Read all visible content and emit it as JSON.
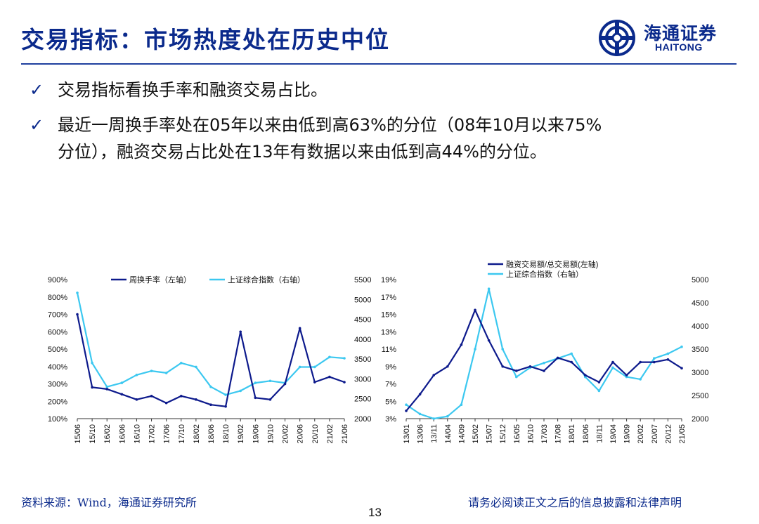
{
  "title": "交易指标：市场热度处在历史中位",
  "logo": {
    "cn": "海通证券",
    "en": "HAITONG"
  },
  "bullets": [
    {
      "check": "✓",
      "text": "交易指标看换手率和融资交易占比。"
    },
    {
      "check": "✓",
      "text": "最近一周换手率处在05年以来由低到高63%的分位（08年10月以来75%"
    },
    {
      "check": "",
      "text": "分位），融资交易占比处在13年有数据以来由低到高44%的分位。"
    }
  ],
  "footer": {
    "source": "资料来源：Wind，海通证券研究所",
    "disclaimer": "请务必阅读正文之后的信息披露和法律声明"
  },
  "page_number": "13",
  "colors": {
    "dark_series": "#0d1a8c",
    "light_series": "#3cc8f0",
    "title": "#0b2a8c"
  },
  "chart_data": [
    {
      "type": "line",
      "x": [
        "15/06",
        "15/10",
        "16/02",
        "16/06",
        "16/10",
        "17/02",
        "17/06",
        "17/10",
        "18/02",
        "18/06",
        "18/10",
        "19/02",
        "19/06",
        "19/10",
        "20/02",
        "20/06",
        "20/10",
        "21/02",
        "21/06"
      ],
      "left_axis": {
        "ticks": [
          "900%",
          "800%",
          "700%",
          "600%",
          "500%",
          "400%",
          "300%",
          "200%",
          "100%"
        ],
        "ylim": [
          100,
          900
        ]
      },
      "right_axis": {
        "ticks": [
          "5500",
          "5000",
          "4500",
          "4000",
          "3500",
          "3000",
          "2500",
          "2000"
        ],
        "ylim": [
          2000,
          5500
        ]
      },
      "series": [
        {
          "name": "周换手率（左轴）",
          "axis": "left",
          "values": [
            700,
            280,
            270,
            240,
            210,
            230,
            190,
            230,
            210,
            180,
            170,
            600,
            220,
            210,
            300,
            620,
            310,
            340,
            310
          ]
        },
        {
          "name": "上证综合指数（右轴）",
          "axis": "right",
          "values": [
            5166,
            3400,
            2800,
            2900,
            3100,
            3200,
            3150,
            3400,
            3300,
            2800,
            2600,
            2700,
            2900,
            2950,
            2900,
            3300,
            3300,
            3550,
            3520
          ]
        }
      ]
    },
    {
      "type": "line",
      "x": [
        "13/01",
        "13/06",
        "13/11",
        "14/04",
        "14/09",
        "15/02",
        "15/07",
        "15/12",
        "16/05",
        "16/10",
        "17/03",
        "17/08",
        "18/01",
        "18/06",
        "18/11",
        "19/04",
        "19/09",
        "20/02",
        "20/07",
        "20/12",
        "21/05"
      ],
      "left_axis": {
        "ticks": [
          "19%",
          "17%",
          "15%",
          "13%",
          "11%",
          "9%",
          "7%",
          "5%",
          "3%"
        ],
        "ylim": [
          3,
          19
        ]
      },
      "right_axis": {
        "ticks": [
          "5000",
          "4500",
          "4000",
          "3500",
          "3000",
          "2500",
          "2000"
        ],
        "ylim": [
          2000,
          5000
        ]
      },
      "series": [
        {
          "name": "融资交易额/总交易额(左轴)",
          "axis": "left",
          "values": [
            3.9,
            5.8,
            8.0,
            9.0,
            11.5,
            15.5,
            12.0,
            9.0,
            8.5,
            9.0,
            8.5,
            10.0,
            9.5,
            8.0,
            7.2,
            9.5,
            8.0,
            9.5,
            9.5,
            9.8,
            8.8
          ]
        },
        {
          "name": "上证综合指数（右轴）",
          "axis": "right",
          "values": [
            2300,
            2100,
            2000,
            2050,
            2300,
            3500,
            4800,
            3500,
            2900,
            3100,
            3200,
            3300,
            3400,
            2900,
            2600,
            3100,
            2900,
            2850,
            3300,
            3400,
            3550
          ]
        }
      ]
    }
  ]
}
